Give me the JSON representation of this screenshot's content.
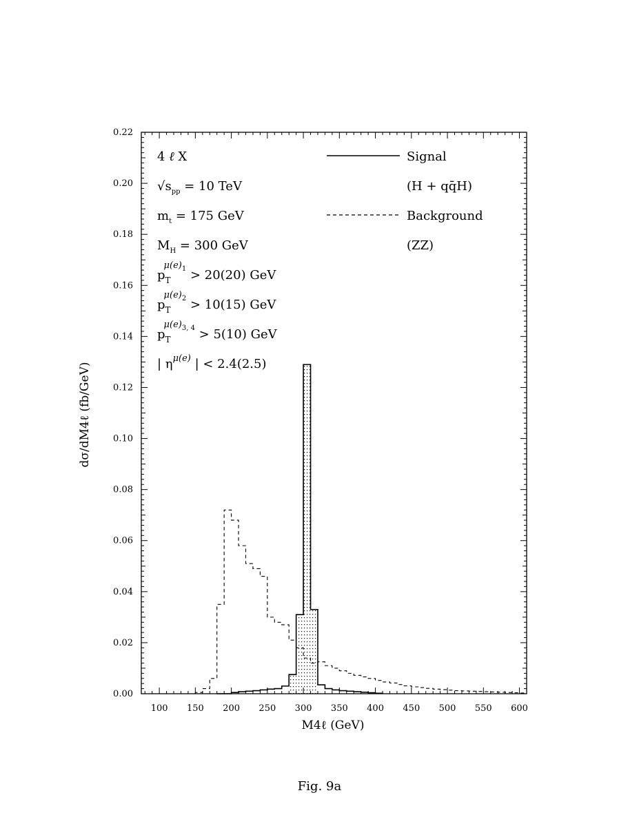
{
  "chart_data": {
    "type": "histogram",
    "ylabel": "dσ/dM4ℓ (fb/GeV)",
    "xlabel": "M4ℓ (GeV)",
    "xlim": [
      75,
      610
    ],
    "ylim": [
      0,
      0.22
    ],
    "xticks": [
      "100",
      "150",
      "200",
      "250",
      "300",
      "350",
      "400",
      "450",
      "500",
      "550",
      "600"
    ],
    "xtick_values": [
      100,
      150,
      200,
      250,
      300,
      350,
      400,
      450,
      500,
      550,
      600
    ],
    "yticks": [
      "0.00",
      "0.02",
      "0.04",
      "0.06",
      "0.08",
      "0.10",
      "0.12",
      "0.14",
      "0.16",
      "0.18",
      "0.20",
      "0.22"
    ],
    "ytick_values": [
      0.0,
      0.02,
      0.04,
      0.06,
      0.08,
      0.1,
      0.12,
      0.14,
      0.16,
      0.18,
      0.2,
      0.22
    ],
    "bin_width": 10,
    "annotations": {
      "process": "4 ℓ X",
      "sqrt_s": "√sₚₚ = 10 TeV",
      "mt": "mₜ = 175 GeV",
      "mh": "Mₕ = 300 GeV",
      "pt1": "pT^μ(e)₁ > 20(20) GeV",
      "pt2": "pT^μ(e)₂ > 10(15) GeV",
      "pt34": "pT^μ(e)₃,₄ > 5(10) GeV",
      "eta": "| η^μ(e) | < 2.4(2.5)"
    },
    "annotation_lines": [
      {
        "main": "4 ",
        "sym": "ℓ",
        "rest": " X"
      },
      {
        "main": "√s",
        "sub": "pp",
        "rest": " = 10 TeV"
      },
      {
        "main": "m",
        "sub": "t",
        "rest": " = 175 GeV"
      },
      {
        "main": "M",
        "sub": "H",
        "rest": " = 300 GeV"
      },
      {
        "main": "p",
        "sub": "T",
        "sup": "μ(e)",
        "supsub": "1",
        "rest": "  > 20(20) GeV"
      },
      {
        "main": "p",
        "sub": "T",
        "sup": "μ(e)",
        "supsub": "2",
        "rest": "  > 10(15) GeV"
      },
      {
        "main": "p",
        "sub": "T",
        "sup": "μ(e)",
        "supsub": "3, 4",
        "rest": "  > 5(10) GeV"
      },
      {
        "main": "| η",
        "sup": "μ(e)",
        "rest": " | < 2.4(2.5)"
      }
    ],
    "legend": {
      "signal_label": "Signal",
      "signal_sub": "(H + qq̄H)",
      "background_label": "Background",
      "background_sub": "(ZZ)"
    },
    "series": [
      {
        "name": "Signal",
        "style": "solid-hatched",
        "x": [
          180,
          190,
          200,
          210,
          220,
          230,
          240,
          250,
          260,
          270,
          280,
          290,
          300,
          310,
          320,
          330,
          340,
          350,
          360,
          370,
          380,
          390,
          400
        ],
        "values": [
          0.0,
          0.0,
          0.0005,
          0.0008,
          0.001,
          0.0012,
          0.0015,
          0.0018,
          0.002,
          0.003,
          0.0075,
          0.031,
          0.129,
          0.033,
          0.0035,
          0.002,
          0.0015,
          0.0012,
          0.001,
          0.0008,
          0.0006,
          0.0004,
          0.0002
        ]
      },
      {
        "name": "Background",
        "style": "dashed",
        "x": [
          150,
          160,
          170,
          180,
          190,
          200,
          210,
          220,
          230,
          240,
          250,
          260,
          270,
          280,
          290,
          300,
          310,
          320,
          330,
          340,
          350,
          360,
          370,
          380,
          390,
          400,
          410,
          420,
          430,
          440,
          450,
          460,
          470,
          480,
          490,
          500,
          510,
          520,
          530,
          540,
          550,
          560,
          570,
          580,
          590,
          600
        ],
        "values": [
          0.0005,
          0.002,
          0.006,
          0.035,
          0.072,
          0.068,
          0.058,
          0.051,
          0.049,
          0.046,
          0.03,
          0.028,
          0.027,
          0.021,
          0.018,
          0.014,
          0.012,
          0.0125,
          0.011,
          0.01,
          0.009,
          0.008,
          0.0072,
          0.0066,
          0.006,
          0.0052,
          0.0046,
          0.0042,
          0.0036,
          0.0031,
          0.0027,
          0.0024,
          0.0021,
          0.0018,
          0.0016,
          0.0014,
          0.0012,
          0.0011,
          0.001,
          0.0009,
          0.0008,
          0.0007,
          0.0006,
          0.0005,
          0.0004,
          0.0003
        ]
      }
    ]
  },
  "caption": "Fig. 9a"
}
